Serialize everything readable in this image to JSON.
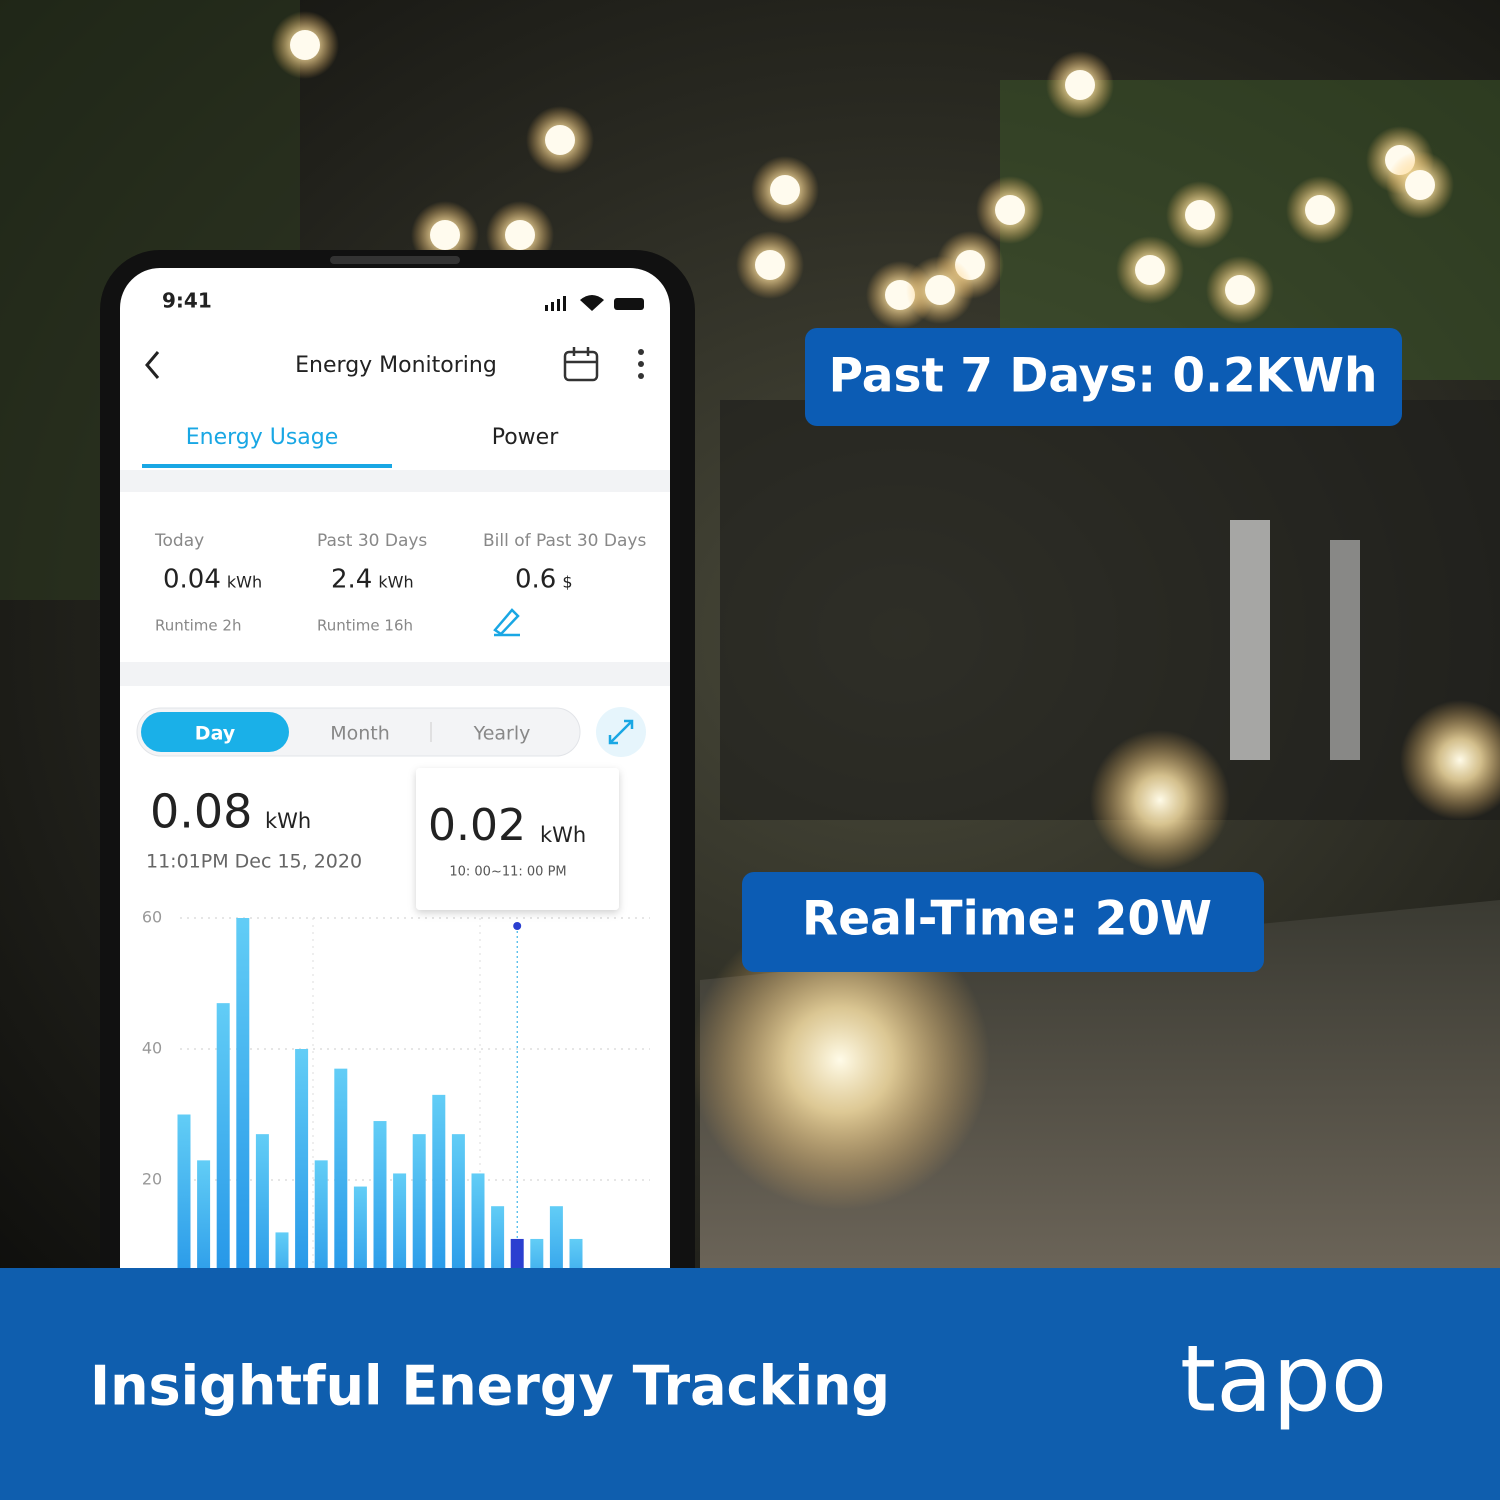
{
  "status_bar": {
    "time": "9:41"
  },
  "header": {
    "title": "Energy Monitoring"
  },
  "tabs": [
    "Energy Usage",
    "Power"
  ],
  "summary": [
    {
      "label": "Today",
      "value": "0.04",
      "unit": "kWh",
      "note": "Runtime 2h"
    },
    {
      "label": "Past 30 Days",
      "value": "2.4",
      "unit": "kWh",
      "note": "Runtime 16h"
    },
    {
      "label": "Bill of Past 30 Days",
      "value": "0.6",
      "unit": "$"
    }
  ],
  "period_tabs": [
    "Day",
    "Month",
    "Yearly"
  ],
  "reading": {
    "value": "0.08",
    "unit": "kWh",
    "time": "11:01PM Dec 15, 2020"
  },
  "tooltip": {
    "value": "0.02",
    "unit": "kWh",
    "range": "10: 00~11: 00 PM"
  },
  "chart_data": {
    "type": "bar",
    "values": [
      30,
      23,
      47,
      60,
      27,
      12,
      40,
      23,
      37,
      19,
      29,
      21,
      27,
      33,
      27,
      21,
      16,
      11,
      11,
      16,
      11
    ],
    "color": "#3aaeee",
    "highlight_index": 17,
    "highlight_color": "#2a3fd0",
    "ylim": [
      0,
      60
    ],
    "yticks": [
      20,
      40,
      60
    ],
    "grid": true
  },
  "callouts": [
    "Past 7 Days: 0.2KWh",
    "Real-Time: 20W"
  ],
  "footer": {
    "tagline": "Insightful Energy Tracking",
    "brand": "tapo"
  }
}
